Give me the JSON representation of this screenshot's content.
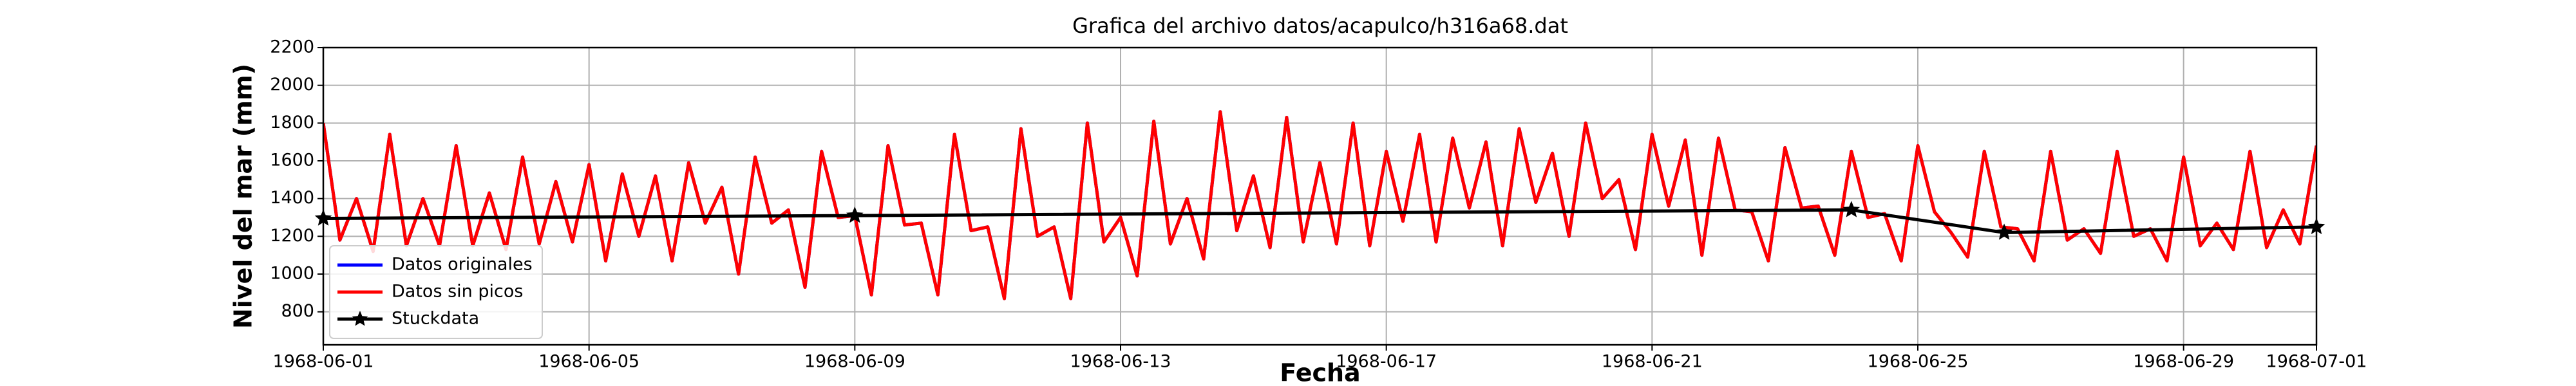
{
  "chart_data": {
    "type": "line",
    "title": "Grafica del archivo datos/acapulco/h316a68.dat",
    "x_label": "Fecha",
    "y_label": "Nivel del mar (mm)",
    "xlim": [
      0,
      30
    ],
    "xticks": [
      {
        "value": 0,
        "label": "1968-06-01"
      },
      {
        "value": 4,
        "label": "1968-06-05"
      },
      {
        "value": 8,
        "label": "1968-06-09"
      },
      {
        "value": 12,
        "label": "1968-06-13"
      },
      {
        "value": 16,
        "label": "1968-06-17"
      },
      {
        "value": 20,
        "label": "1968-06-21"
      },
      {
        "value": 24,
        "label": "1968-06-25"
      },
      {
        "value": 28,
        "label": "1968-06-29"
      },
      {
        "value": 30,
        "label": "1968-07-01"
      }
    ],
    "ylim": [
      625,
      2200
    ],
    "yticks": [
      800,
      1000,
      1200,
      1400,
      1600,
      1800,
      2000,
      2200
    ],
    "grid": true,
    "legend": "lower left",
    "x": [
      0,
      0.25,
      0.5,
      0.75,
      1,
      1.25,
      1.5,
      1.75,
      2,
      2.25,
      2.5,
      2.75,
      3,
      3.25,
      3.5,
      3.75,
      4,
      4.25,
      4.5,
      4.75,
      5,
      5.25,
      5.5,
      5.75,
      6,
      6.25,
      6.5,
      6.75,
      7,
      7.25,
      7.5,
      7.75,
      8,
      8.25,
      8.5,
      8.75,
      9,
      9.25,
      9.5,
      9.75,
      10,
      10.25,
      10.5,
      10.75,
      11,
      11.25,
      11.5,
      11.75,
      12,
      12.25,
      12.5,
      12.75,
      13,
      13.25,
      13.5,
      13.75,
      14,
      14.25,
      14.5,
      14.75,
      15,
      15.25,
      15.5,
      15.75,
      16,
      16.25,
      16.5,
      16.75,
      17,
      17.25,
      17.5,
      17.75,
      18,
      18.25,
      18.5,
      18.75,
      19,
      19.25,
      19.5,
      19.75,
      20,
      20.25,
      20.5,
      20.75,
      21,
      21.25,
      21.5,
      21.75,
      22,
      22.25,
      22.5,
      22.75,
      23,
      23.25,
      23.5,
      23.75,
      24,
      24.25,
      24.5,
      24.75,
      25,
      25.25,
      25.5,
      25.75,
      26,
      26.25,
      26.5,
      26.75,
      27,
      27.25,
      27.5,
      27.75,
      28,
      28.25,
      28.5,
      28.75,
      29,
      29.25,
      29.5,
      29.75,
      30
    ],
    "series": [
      {
        "name": "Datos originales",
        "color": "#0000ff",
        "values": [
          1800,
          1180,
          1400,
          1120,
          1740,
          1150,
          1400,
          1150,
          1680,
          1150,
          1430,
          1130,
          1620,
          1160,
          1490,
          1170,
          1580,
          1070,
          1530,
          1200,
          1520,
          1070,
          1590,
          1270,
          1460,
          1000,
          1620,
          1270,
          1340,
          930,
          1650,
          1300,
          1310,
          890,
          1680,
          1260,
          1270,
          890,
          1740,
          1230,
          1250,
          870,
          1770,
          1200,
          1250,
          870,
          1800,
          1170,
          1300,
          990,
          1810,
          1160,
          1400,
          1080,
          1860,
          1230,
          1520,
          1140,
          1830,
          1170,
          1590,
          1160,
          1800,
          1150,
          1650,
          1280,
          1740,
          1170,
          1720,
          1350,
          1700,
          1150,
          1770,
          1380,
          1640,
          1200,
          1800,
          1400,
          1500,
          1130,
          1740,
          1360,
          1710,
          1100,
          1720,
          1340,
          1330,
          1070,
          1670,
          1350,
          1360,
          1100,
          1650,
          1300,
          1320,
          1070,
          1680,
          1330,
          1220,
          1090,
          1650,
          1250,
          1240,
          1070,
          1650,
          1180,
          1240,
          1110,
          1650,
          1200,
          1240,
          1070,
          1620,
          1150,
          1270,
          1130,
          1650,
          1140,
          1340,
          1160,
          1680
        ]
      },
      {
        "name": "Datos sin picos",
        "color": "#ff0000",
        "values": [
          1800,
          1180,
          1400,
          1120,
          1740,
          1150,
          1400,
          1150,
          1680,
          1150,
          1430,
          1130,
          1620,
          1160,
          1490,
          1170,
          1580,
          1070,
          1530,
          1200,
          1520,
          1070,
          1590,
          1270,
          1460,
          1000,
          1620,
          1270,
          1340,
          930,
          1650,
          1300,
          1310,
          890,
          1680,
          1260,
          1270,
          890,
          1740,
          1230,
          1250,
          870,
          1770,
          1200,
          1250,
          870,
          1800,
          1170,
          1300,
          990,
          1810,
          1160,
          1400,
          1080,
          1860,
          1230,
          1520,
          1140,
          1830,
          1170,
          1590,
          1160,
          1800,
          1150,
          1650,
          1280,
          1740,
          1170,
          1720,
          1350,
          1700,
          1150,
          1770,
          1380,
          1640,
          1200,
          1800,
          1400,
          1500,
          1130,
          1740,
          1360,
          1710,
          1100,
          1720,
          1340,
          1330,
          1070,
          1670,
          1350,
          1360,
          1100,
          1650,
          1300,
          1320,
          1070,
          1680,
          1330,
          1220,
          1090,
          1650,
          1250,
          1240,
          1070,
          1650,
          1180,
          1240,
          1110,
          1650,
          1200,
          1240,
          1070,
          1620,
          1150,
          1270,
          1130,
          1650,
          1140,
          1340,
          1160,
          1680
        ]
      },
      {
        "name": "Stuckdata",
        "color": "#000000",
        "marker": "star",
        "x": [
          0,
          8,
          23,
          25.3,
          30
        ],
        "values": [
          1295,
          1310,
          1340,
          1220,
          1250
        ]
      }
    ]
  }
}
